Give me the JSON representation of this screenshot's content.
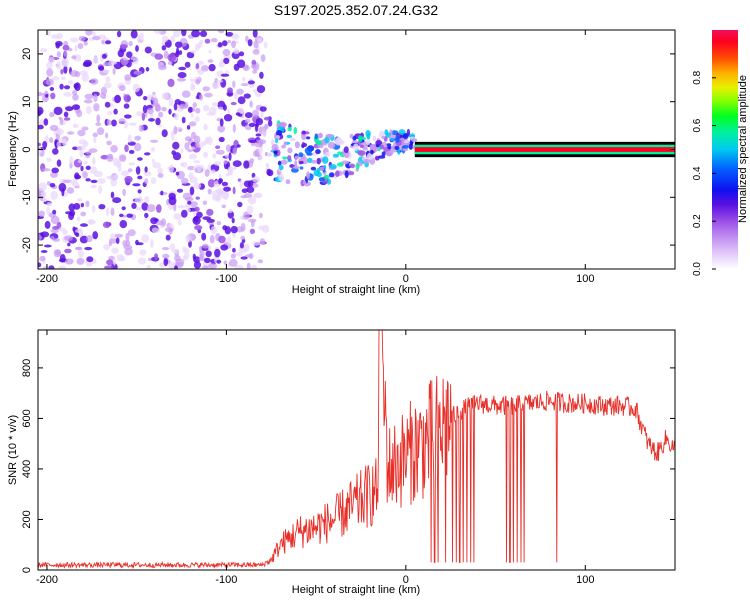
{
  "figure": {
    "title": "S197.2025.352.07.24.G32"
  },
  "colors": {
    "axis": "#000000",
    "snr_line": "#e8302a",
    "spectro_main": "#6a1fd8",
    "spectro_light": "#d9c2f5",
    "colormap": [
      "#ffffff",
      "#e9d6fb",
      "#c89af2",
      "#9a4fe8",
      "#5a10e0",
      "#1010f0",
      "#0060ff",
      "#00c8f0",
      "#00f0a0",
      "#00ff20",
      "#80ff00",
      "#e8f000",
      "#ffb000",
      "#ff5000",
      "#ff0020",
      "#f0105a"
    ]
  },
  "chart_data": [
    {
      "type": "heatmap",
      "title": "S197.2025.352.07.24.G32",
      "xlabel": "Height of straight line (km)",
      "ylabel": "Frequency (Hz)",
      "xlim": [
        -205,
        150
      ],
      "ylim": [
        -25,
        25
      ],
      "xticks": [
        -200,
        -100,
        0,
        100
      ],
      "yticks": [
        -20,
        -10,
        0,
        10,
        20
      ],
      "colorbar": {
        "label": "Normalized spectral amplitude",
        "range": [
          0,
          1
        ],
        "ticks": [
          0.0,
          0.2,
          0.4,
          0.6,
          0.8
        ]
      },
      "regions": [
        {
          "name": "noise",
          "x_range": [
            -205,
            -78
          ],
          "freq_range": [
            -25,
            25
          ],
          "amplitude": 0.1
        },
        {
          "name": "scattered-signal",
          "x_range": [
            -78,
            5
          ],
          "freq_range": [
            -16,
            10
          ],
          "amplitude": 0.35
        },
        {
          "name": "dc-line",
          "x_range": [
            5,
            150
          ],
          "freq": 0,
          "amplitude": 0.95
        }
      ]
    },
    {
      "type": "line",
      "xlabel": "Height of straight line (km)",
      "ylabel": "SNR (10 * v/v)",
      "xlim": [
        -205,
        150
      ],
      "ylim": [
        0,
        950
      ],
      "xticks": [
        -200,
        -100,
        0,
        100
      ],
      "yticks": [
        0,
        200,
        400,
        600,
        800
      ],
      "series": [
        {
          "name": "SNR",
          "x": [
            -205,
            -150,
            -100,
            -80,
            -75,
            -70,
            -60,
            -50,
            -40,
            -30,
            -20,
            -15,
            -14,
            -10,
            -5,
            0,
            5,
            10,
            15,
            20,
            25,
            30,
            40,
            50,
            60,
            70,
            80,
            90,
            100,
            110,
            120,
            128,
            135,
            140,
            145,
            150
          ],
          "y": [
            20,
            20,
            20,
            20,
            40,
            100,
            150,
            170,
            200,
            250,
            300,
            320,
            950,
            400,
            420,
            450,
            480,
            500,
            530,
            560,
            600,
            630,
            660,
            650,
            650,
            660,
            670,
            660,
            660,
            650,
            650,
            640,
            500,
            460,
            520,
            480
          ]
        }
      ],
      "dropouts_x": [
        14,
        16,
        18,
        22,
        26,
        28,
        30,
        32,
        34,
        36,
        38,
        56,
        58,
        60,
        62,
        64,
        66,
        84
      ]
    }
  ]
}
